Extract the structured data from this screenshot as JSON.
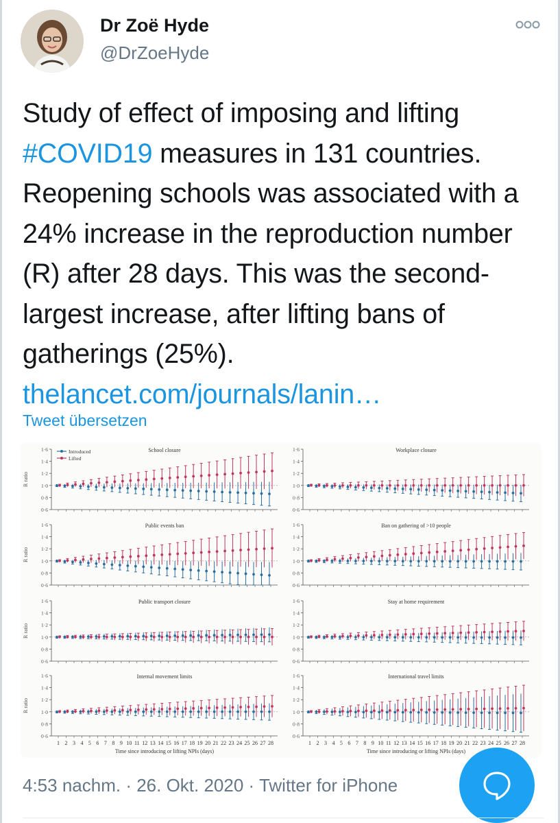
{
  "author": {
    "name": "Dr Zoë Hyde",
    "handle": "@DrZoeHyde"
  },
  "tweet": {
    "text_before": "Study of effect of imposing and lifting ",
    "hashtag": "#COVID19",
    "text_after": " measures in 131 countries. Reopening schools was associated with a 24% increase in the reproduction number (R) after 28 days. This was the second-largest increase, after lifting bans of gatherings (25%).",
    "link_text": "thelancet.com/journals/lanin…",
    "translate_label": "Tweet übersetzen"
  },
  "meta": {
    "time": "4:53 nachm.",
    "sep1": " · ",
    "date": "26. Okt. 2020",
    "sep2": " · ",
    "source": "Twitter for iPhone"
  },
  "icons": {
    "more": "more-options-icon",
    "compose": "reply-bubble-icon"
  },
  "colors": {
    "link": "#1b95e0",
    "introduced": "#2b6e9e",
    "lifted": "#c0355f",
    "fab": "#1da1f2"
  },
  "chart_data": {
    "type": "scatter",
    "subtype": "point-with-error-bars, 4x2 small multiples",
    "legend": [
      "Introduced",
      "Lifted"
    ],
    "ylabel": "R ratio",
    "xlabel": "Time since introducing or lifting NPIs (days)",
    "y_ticks": [
      "0·6",
      "0·8",
      "1·0",
      "1·2",
      "1·4",
      "1·6"
    ],
    "ylim": [
      0.6,
      1.6
    ],
    "x_ticks": [
      "1",
      "2",
      "3",
      "4",
      "5",
      "6",
      "7",
      "8",
      "9",
      "10",
      "11",
      "12",
      "13",
      "14",
      "15",
      "16",
      "17",
      "18",
      "19",
      "20",
      "21",
      "22",
      "23",
      "24",
      "25",
      "26",
      "27",
      "28"
    ],
    "panels": [
      {
        "title": "School closure",
        "introduced_end": 0.86,
        "lifted_end": 1.24,
        "intro_err": 0.18,
        "lift_err": 0.28
      },
      {
        "title": "Workplace closure",
        "introduced_end": 0.87,
        "lifted_end": 1.0,
        "intro_err": 0.12,
        "lift_err": 0.16
      },
      {
        "title": "Public events ban",
        "introduced_end": 0.76,
        "lifted_end": 1.21,
        "intro_err": 0.2,
        "lift_err": 0.3
      },
      {
        "title": "Ban on gathering of >10 people",
        "introduced_end": 0.99,
        "lifted_end": 1.25,
        "intro_err": 0.12,
        "lift_err": 0.2
      },
      {
        "title": "Public transport closure",
        "introduced_end": 1.04,
        "lifted_end": 1.0,
        "intro_err": 0.1,
        "lift_err": 0.12
      },
      {
        "title": "Stay at home requirement",
        "introduced_end": 0.99,
        "lifted_end": 1.1,
        "intro_err": 0.1,
        "lift_err": 0.14
      },
      {
        "title": "Internal movement limits",
        "introduced_end": 1.0,
        "lifted_end": 1.09,
        "intro_err": 0.12,
        "lift_err": 0.16
      },
      {
        "title": "International travel limits",
        "introduced_end": 0.98,
        "lifted_end": 1.06,
        "intro_err": 0.3,
        "lift_err": 0.36
      }
    ]
  }
}
